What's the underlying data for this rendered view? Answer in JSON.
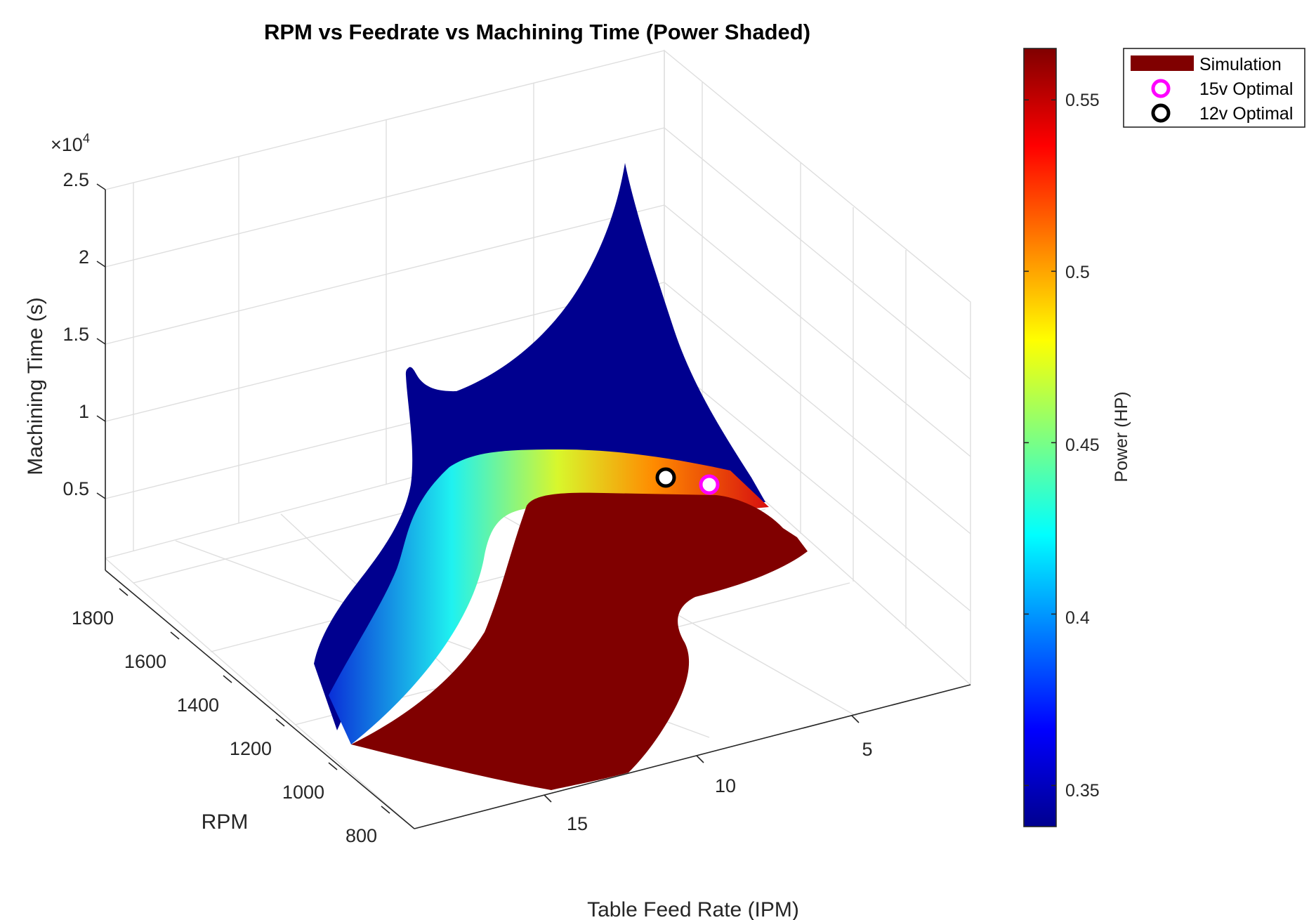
{
  "chart_data": {
    "type": "surface3d",
    "title": "RPM vs Feedrate vs Machining Time (Power Shaded)",
    "xlabel": "Table Feed Rate (IPM)",
    "ylabel": "RPM",
    "zlabel": "Machining Time (s)",
    "z_exponent": "×10",
    "z_exponent_power": "4",
    "x_ticks": [
      "5",
      "10",
      "15"
    ],
    "y_ticks": [
      "800",
      "1000",
      "1200",
      "1400",
      "1600",
      "1800"
    ],
    "z_ticks": [
      "0.5",
      "1",
      "1.5",
      "2",
      "2.5"
    ],
    "xlim": [
      1,
      19
    ],
    "ylim": [
      700,
      1900
    ],
    "zlim": [
      0,
      25000
    ],
    "grid": true,
    "colormap": "jet",
    "colorbar": {
      "label": "Power (HP)",
      "range": [
        0.338,
        0.565
      ],
      "ticks": [
        "0.35",
        "0.4",
        "0.45",
        "0.5",
        "0.55"
      ],
      "tick_values": [
        0.35,
        0.4,
        0.45,
        0.5,
        0.55
      ]
    },
    "legend": {
      "placement": "top-right",
      "entries": [
        {
          "label": "Simulation",
          "type": "patch",
          "color": "#800000"
        },
        {
          "label": "15v Optimal",
          "type": "circle",
          "color": "#ff00ff"
        },
        {
          "label": "12v Optimal",
          "type": "circle",
          "color": "#000000"
        }
      ]
    },
    "series": [
      {
        "name": "15v Optimal",
        "x": 6.5,
        "y": 1700,
        "z": 1500,
        "color": "#ff00ff"
      },
      {
        "name": "12v Optimal",
        "x": 7.5,
        "y": 1800,
        "z": 1800,
        "color": "#000000"
      }
    ]
  }
}
